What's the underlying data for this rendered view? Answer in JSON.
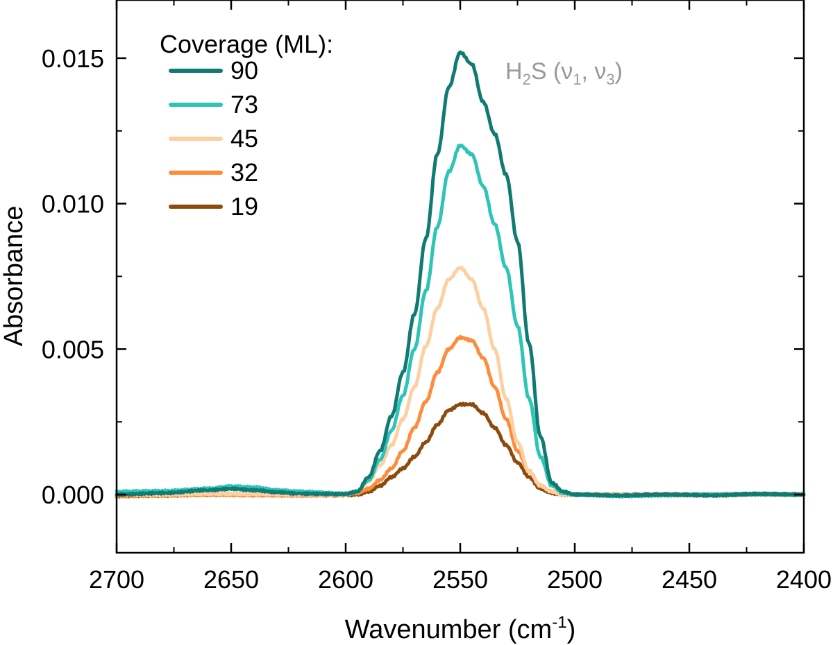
{
  "chart_data": {
    "type": "line",
    "xlabel": "Wavenumber (cm",
    "xlabel_sup": "-1",
    "xlabel_tail": ")",
    "ylabel": "Absorbance",
    "xlim": [
      2700,
      2400
    ],
    "ylim": [
      -0.002,
      0.017
    ],
    "xticks": [
      2700,
      2650,
      2600,
      2550,
      2500,
      2450,
      2400
    ],
    "xtick_labels": [
      "2700",
      "2650",
      "2600",
      "2550",
      "2500",
      "2450",
      "2400"
    ],
    "yticks": [
      0.0,
      0.005,
      0.01,
      0.015
    ],
    "ytick_labels": [
      "0.000",
      "0.005",
      "0.010",
      "0.015"
    ],
    "legend": {
      "title": "Coverage (ML):",
      "placement": "top-left"
    },
    "annotation": {
      "prefix": "H",
      "sub1": "2",
      "mid": "S (ν",
      "sub2": "1",
      "sep": ", ν",
      "sub3": "3",
      "suffix": ")",
      "color": "#999999"
    },
    "series": [
      {
        "name": "90",
        "color": "#117a72",
        "x": [
          2700,
          2680,
          2660,
          2650,
          2640,
          2630,
          2620,
          2600,
          2595,
          2590,
          2585,
          2580,
          2575,
          2570,
          2565,
          2560,
          2555,
          2550,
          2545,
          2540,
          2535,
          2530,
          2525,
          2520,
          2515,
          2510,
          2505,
          2500,
          2480,
          2460,
          2440,
          2420,
          2400
        ],
        "values": [
          0.0,
          5e-05,
          0.00015,
          0.0002,
          0.00015,
          8e-05,
          3e-05,
          2e-05,
          0.0001,
          0.0006,
          0.0015,
          0.0027,
          0.0042,
          0.0062,
          0.0088,
          0.0117,
          0.014,
          0.0152,
          0.0148,
          0.0135,
          0.0124,
          0.011,
          0.0087,
          0.0052,
          0.002,
          0.0004,
          0.0001,
          0.0,
          -3e-05,
          0.0,
          -3e-05,
          2e-05,
          0.0
        ]
      },
      {
        "name": "73",
        "color": "#2ec4b6",
        "x": [
          2700,
          2680,
          2660,
          2650,
          2640,
          2630,
          2620,
          2600,
          2595,
          2590,
          2585,
          2580,
          2575,
          2570,
          2565,
          2560,
          2555,
          2550,
          2545,
          2540,
          2535,
          2530,
          2525,
          2520,
          2515,
          2510,
          2505,
          2500,
          2480,
          2460,
          2440,
          2420,
          2400
        ],
        "values": [
          0.0001,
          0.00012,
          0.0002,
          0.00028,
          0.00025,
          0.00015,
          0.0001,
          3e-05,
          0.0001,
          0.0005,
          0.0012,
          0.0022,
          0.0034,
          0.005,
          0.007,
          0.0092,
          0.0111,
          0.012,
          0.0117,
          0.0106,
          0.0093,
          0.0078,
          0.0058,
          0.0033,
          0.0013,
          0.0003,
          5e-05,
          0.0,
          -5e-05,
          -2e-05,
          0.0,
          2e-05,
          0.0
        ]
      },
      {
        "name": "45",
        "color": "#fdd0a2",
        "x": [
          2700,
          2680,
          2660,
          2640,
          2620,
          2600,
          2595,
          2590,
          2585,
          2580,
          2575,
          2570,
          2565,
          2560,
          2555,
          2550,
          2545,
          2540,
          2535,
          2530,
          2525,
          2520,
          2515,
          2510,
          2505,
          2500,
          2480,
          2460,
          2440,
          2420,
          2400
        ],
        "values": [
          0.0,
          0.0,
          3e-05,
          2e-05,
          0.0,
          0.0,
          0.00012,
          0.00045,
          0.001,
          0.0017,
          0.0026,
          0.0037,
          0.0051,
          0.0064,
          0.0074,
          0.0078,
          0.0074,
          0.0064,
          0.005,
          0.0033,
          0.0018,
          0.0008,
          0.0003,
          0.0001,
          0.0,
          0.0,
          0.0,
          -3e-05,
          0.0,
          0.0,
          0.0
        ]
      },
      {
        "name": "32",
        "color": "#fd8d3c",
        "x": [
          2700,
          2680,
          2660,
          2640,
          2620,
          2600,
          2595,
          2590,
          2585,
          2580,
          2575,
          2570,
          2565,
          2560,
          2555,
          2550,
          2545,
          2540,
          2535,
          2530,
          2525,
          2520,
          2515,
          2510,
          2505,
          2500,
          2480,
          2460,
          2440,
          2420,
          2400
        ],
        "values": [
          -5e-05,
          -3e-05,
          0.0,
          -2e-05,
          -3e-05,
          0.0,
          5e-05,
          0.0002,
          0.0005,
          0.0009,
          0.0015,
          0.0023,
          0.0032,
          0.0042,
          0.005,
          0.0054,
          0.0053,
          0.0047,
          0.0037,
          0.0026,
          0.0015,
          0.0008,
          0.0003,
          0.0001,
          0.0,
          0.0,
          -3e-05,
          0.0,
          -2e-05,
          0.0,
          0.0
        ]
      },
      {
        "name": "19",
        "color": "#8c4a0c",
        "x": [
          2700,
          2680,
          2660,
          2640,
          2620,
          2600,
          2595,
          2590,
          2585,
          2580,
          2575,
          2570,
          2565,
          2560,
          2555,
          2550,
          2545,
          2540,
          2535,
          2530,
          2525,
          2520,
          2515,
          2510,
          2505,
          2500,
          2480,
          2460,
          2440,
          2420,
          2400
        ],
        "values": [
          -5e-05,
          -3e-05,
          0.0,
          0.0,
          -2e-05,
          -2e-05,
          0.0,
          0.0001,
          0.0003,
          0.0006,
          0.0009,
          0.0013,
          0.0018,
          0.0024,
          0.0029,
          0.0031,
          0.0031,
          0.0028,
          0.0023,
          0.0017,
          0.0011,
          0.0006,
          0.0002,
          5e-05,
          0.0,
          0.0,
          0.0,
          0.0,
          0.0,
          2e-05,
          0.0
        ]
      }
    ]
  }
}
